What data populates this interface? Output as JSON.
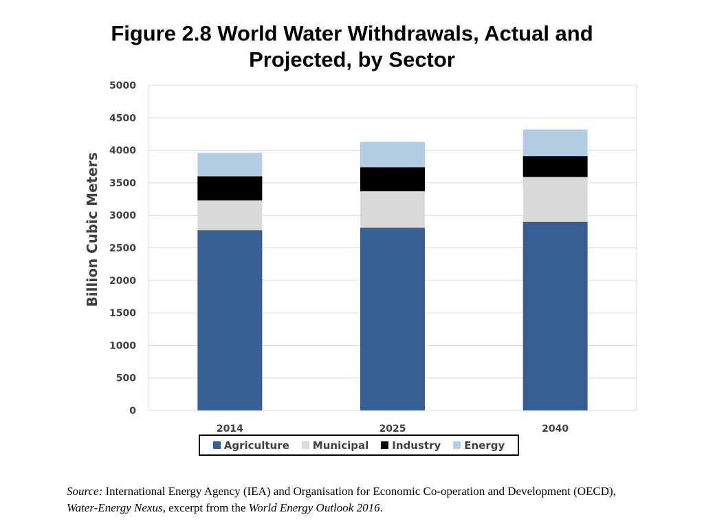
{
  "title": {
    "line1": "Figure 2.8 World Water Withdrawals, Actual and",
    "line2": "Projected, by Sector"
  },
  "chart_data": {
    "type": "bar",
    "stacked": true,
    "categories": [
      "2014",
      "2025",
      "2040"
    ],
    "series": [
      {
        "name": "Agriculture",
        "color": "#375F94",
        "values": [
          2770,
          2810,
          2900
        ]
      },
      {
        "name": "Municipal",
        "color": "#D9D9D9",
        "values": [
          460,
          560,
          690
        ]
      },
      {
        "name": "Industry",
        "color": "#000000",
        "values": [
          370,
          370,
          320
        ]
      },
      {
        "name": "Energy",
        "color": "#B4CCE4",
        "values": [
          360,
          390,
          410
        ]
      }
    ],
    "ylabel": "Billion Cubic Meters",
    "xlabel": "",
    "ylim": [
      0,
      5000
    ],
    "yticks": [
      "0",
      "500",
      "1000",
      "1500",
      "2000",
      "2500",
      "3000",
      "3500",
      "4000",
      "4500",
      "5000"
    ],
    "grid": true,
    "legend_position": "bottom"
  },
  "source": {
    "label": "Source:",
    "text1": " International Energy Agency (IEA) and Organisation for Economic Co-operation and Development (OECD), ",
    "italic1": "Water-Energy Nexus",
    "text2": ", excerpt from the ",
    "italic2": "World Energy Outlook 2016",
    "end": "."
  }
}
